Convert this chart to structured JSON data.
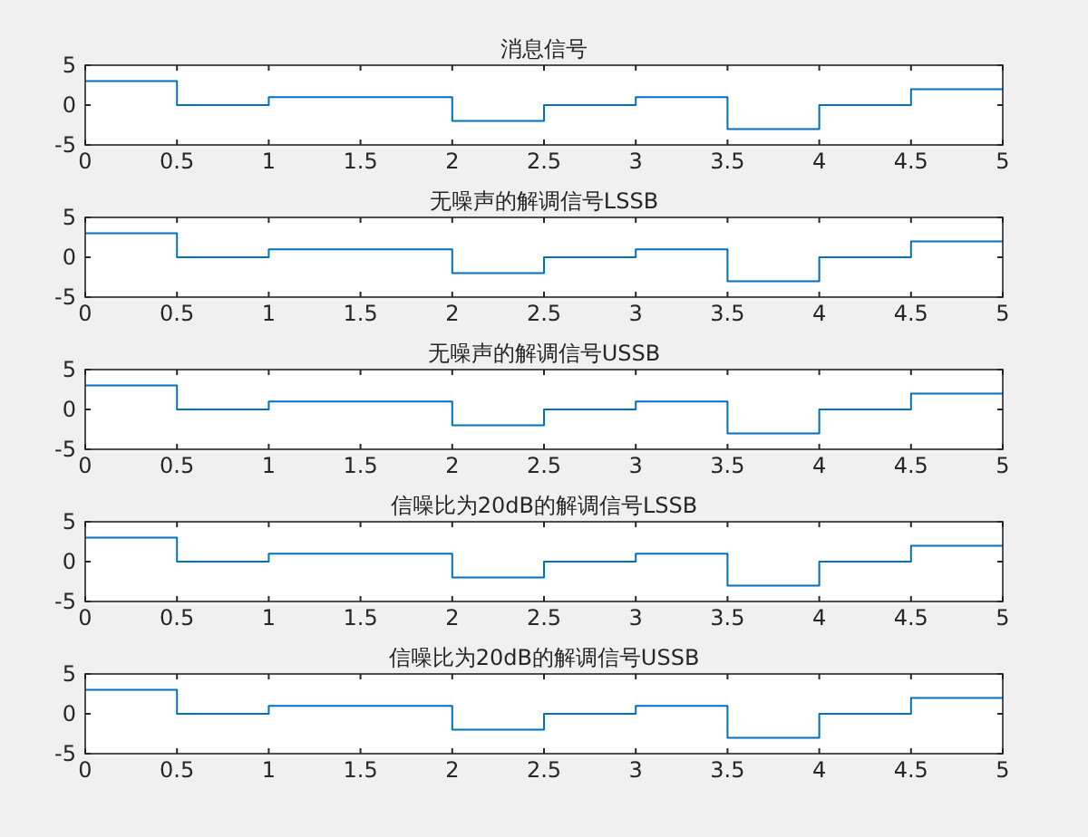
{
  "chart_data": [
    {
      "type": "step",
      "title": "消息信号",
      "x": [
        0,
        0.5,
        1,
        1.5,
        2,
        2.5,
        3,
        3.5,
        4,
        4.5,
        5
      ],
      "values": [
        3,
        0,
        1,
        1,
        -2,
        0,
        1,
        -3,
        0,
        2,
        2
      ],
      "color": "#0072bd",
      "xlim": [
        0,
        5
      ],
      "ylim": [
        -5,
        5
      ],
      "xticks": [
        0,
        0.5,
        1,
        1.5,
        2,
        2.5,
        3,
        3.5,
        4,
        4.5,
        5
      ],
      "yticks": [
        -5,
        0,
        5
      ]
    },
    {
      "type": "step",
      "title": "无噪声的解调信号LSSB",
      "x": [
        0,
        0.5,
        1,
        1.5,
        2,
        2.5,
        3,
        3.5,
        4,
        4.5,
        5
      ],
      "values": [
        3,
        0,
        1,
        1,
        -2,
        0,
        1,
        -3,
        0,
        2,
        2
      ],
      "color": "#0072bd",
      "xlim": [
        0,
        5
      ],
      "ylim": [
        -5,
        5
      ],
      "xticks": [
        0,
        0.5,
        1,
        1.5,
        2,
        2.5,
        3,
        3.5,
        4,
        4.5,
        5
      ],
      "yticks": [
        -5,
        0,
        5
      ]
    },
    {
      "type": "step",
      "title": "无噪声的解调信号USSB",
      "x": [
        0,
        0.5,
        1,
        1.5,
        2,
        2.5,
        3,
        3.5,
        4,
        4.5,
        5
      ],
      "values": [
        3,
        0,
        1,
        1,
        -2,
        0,
        1,
        -3,
        0,
        2,
        2
      ],
      "color": "#0072bd",
      "xlim": [
        0,
        5
      ],
      "ylim": [
        -5,
        5
      ],
      "xticks": [
        0,
        0.5,
        1,
        1.5,
        2,
        2.5,
        3,
        3.5,
        4,
        4.5,
        5
      ],
      "yticks": [
        -5,
        0,
        5
      ]
    },
    {
      "type": "step",
      "title": "信噪比为20dB的解调信号LSSB",
      "x": [
        0,
        0.5,
        1,
        1.5,
        2,
        2.5,
        3,
        3.5,
        4,
        4.5,
        5
      ],
      "values": [
        3,
        0,
        1,
        1,
        -2,
        0,
        1,
        -3,
        0,
        2,
        2
      ],
      "color": "#0072bd",
      "xlim": [
        0,
        5
      ],
      "ylim": [
        -5,
        5
      ],
      "xticks": [
        0,
        0.5,
        1,
        1.5,
        2,
        2.5,
        3,
        3.5,
        4,
        4.5,
        5
      ],
      "yticks": [
        -5,
        0,
        5
      ]
    },
    {
      "type": "step",
      "title": "信噪比为20dB的解调信号USSB",
      "x": [
        0,
        0.5,
        1,
        1.5,
        2,
        2.5,
        3,
        3.5,
        4,
        4.5,
        5
      ],
      "values": [
        3,
        0,
        1,
        1,
        -2,
        0,
        1,
        -3,
        0,
        2,
        2
      ],
      "color": "#0072bd",
      "xlim": [
        0,
        5
      ],
      "ylim": [
        -5,
        5
      ],
      "xticks": [
        0,
        0.5,
        1,
        1.5,
        2,
        2.5,
        3,
        3.5,
        4,
        4.5,
        5
      ],
      "yticks": [
        -5,
        0,
        5
      ]
    }
  ]
}
